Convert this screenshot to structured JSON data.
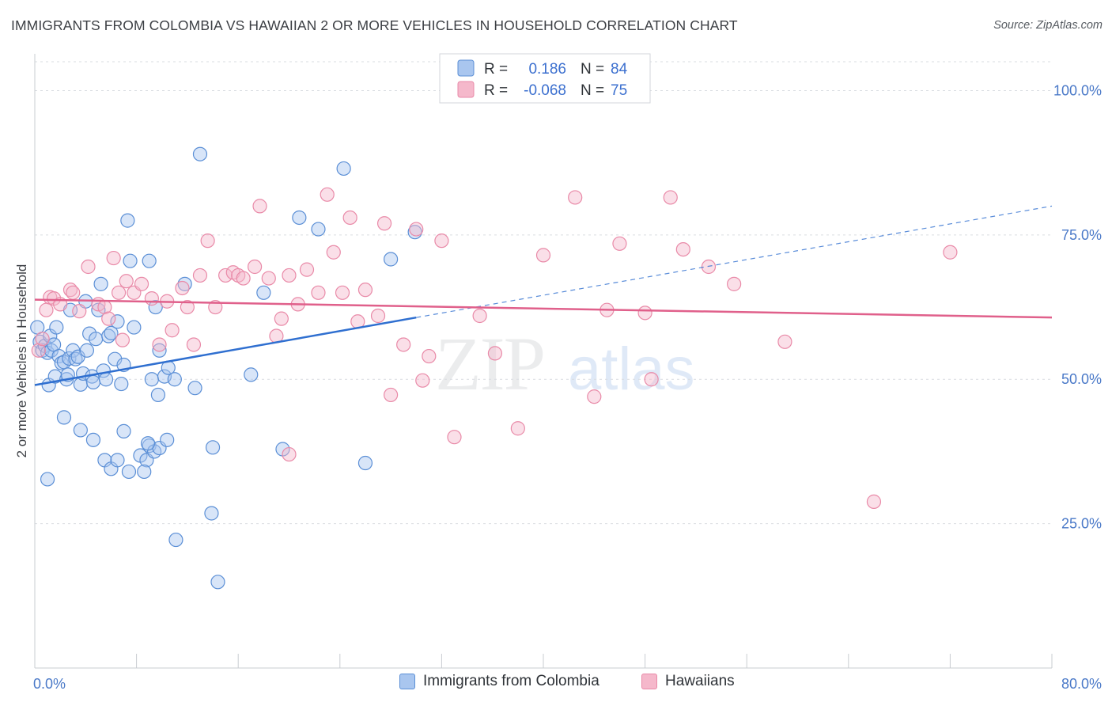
{
  "title": "IMMIGRANTS FROM COLOMBIA VS HAWAIIAN 2 OR MORE VEHICLES IN HOUSEHOLD CORRELATION CHART",
  "source": "Source: ZipAtlas.com",
  "watermark": {
    "zip": "ZIP",
    "atlas": "atlas"
  },
  "colors": {
    "colombia_fill": "#a9c6ef",
    "colombia_stroke": "#5b8fd6",
    "colombia_line": "#2f6fd0",
    "hawaiians_fill": "#f5b8cb",
    "hawaiians_stroke": "#e98aa8",
    "hawaiians_line": "#e0608b",
    "tick_label": "#4a79c8",
    "grid": "#d9dce1"
  },
  "legend": {
    "r_label": "R =",
    "n_label": "N =",
    "rows": [
      {
        "r": "0.186",
        "n": "84"
      },
      {
        "r": "-0.068",
        "n": "75"
      }
    ]
  },
  "chart_data": {
    "type": "scatter",
    "xlabel": "",
    "ylabel": "2 or more Vehicles in Household",
    "xlim": [
      0,
      80
    ],
    "ylim": [
      0,
      105
    ],
    "x_tick_labels": [
      "0.0%",
      "80.0%"
    ],
    "y_ticks": [
      25,
      50,
      75,
      100
    ],
    "y_tick_labels": [
      "25.0%",
      "50.0%",
      "75.0%",
      "100.0%"
    ],
    "grid": true,
    "legend_position": "top-center",
    "series": [
      {
        "name": "Immigrants from Colombia",
        "r": 0.186,
        "n": 84,
        "trend": {
          "x0": 0,
          "y0": 49.0,
          "x1": 30,
          "y1": 60.7,
          "dash_x1": 80,
          "dash_y1": 80.0
        },
        "points": [
          [
            0.2,
            59.0
          ],
          [
            0.4,
            56.5
          ],
          [
            0.6,
            55.0
          ],
          [
            0.8,
            55.8
          ],
          [
            1.0,
            54.6
          ],
          [
            1.2,
            57.5
          ],
          [
            1.1,
            49.0
          ],
          [
            1.3,
            55.0
          ],
          [
            1.5,
            56.0
          ],
          [
            1.7,
            59.0
          ],
          [
            1.6,
            50.5
          ],
          [
            1.9,
            54.0
          ],
          [
            2.1,
            52.8
          ],
          [
            2.3,
            53.0
          ],
          [
            2.5,
            50.0
          ],
          [
            2.6,
            50.8
          ],
          [
            2.7,
            53.6
          ],
          [
            2.8,
            62.0
          ],
          [
            3.0,
            55.0
          ],
          [
            3.2,
            53.5
          ],
          [
            3.4,
            53.9
          ],
          [
            3.6,
            49.1
          ],
          [
            3.8,
            51.0
          ],
          [
            4.0,
            63.5
          ],
          [
            4.1,
            55.0
          ],
          [
            4.3,
            57.9
          ],
          [
            4.5,
            50.5
          ],
          [
            4.6,
            49.5
          ],
          [
            4.8,
            57.0
          ],
          [
            5.0,
            62.0
          ],
          [
            5.2,
            66.5
          ],
          [
            5.4,
            51.5
          ],
          [
            5.6,
            50.0
          ],
          [
            5.8,
            57.5
          ],
          [
            6.0,
            58.0
          ],
          [
            6.3,
            53.5
          ],
          [
            6.5,
            60.0
          ],
          [
            6.8,
            49.2
          ],
          [
            7.0,
            52.5
          ],
          [
            7.3,
            77.5
          ],
          [
            7.5,
            70.5
          ],
          [
            7.8,
            59.0
          ],
          [
            9.0,
            70.5
          ],
          [
            9.5,
            62.5
          ],
          [
            9.2,
            50.0
          ],
          [
            9.8,
            55.0
          ],
          [
            10.2,
            50.5
          ],
          [
            10.5,
            52.0
          ],
          [
            11.0,
            50.0
          ],
          [
            11.8,
            66.5
          ],
          [
            12.6,
            48.5
          ],
          [
            13.0,
            89.0
          ],
          [
            18.0,
            65.0
          ],
          [
            17.0,
            50.8
          ],
          [
            20.8,
            78.0
          ],
          [
            22.3,
            76.0
          ],
          [
            24.3,
            86.5
          ],
          [
            28.0,
            70.8
          ],
          [
            29.9,
            75.5
          ],
          [
            1.0,
            32.7
          ],
          [
            2.3,
            43.4
          ],
          [
            3.6,
            41.2
          ],
          [
            4.6,
            39.5
          ],
          [
            5.5,
            36.0
          ],
          [
            6.0,
            34.5
          ],
          [
            6.5,
            36.0
          ],
          [
            7.0,
            41.0
          ],
          [
            7.4,
            34.0
          ],
          [
            8.3,
            36.8
          ],
          [
            8.8,
            36.0
          ],
          [
            8.6,
            34.0
          ],
          [
            9.0,
            38.5
          ],
          [
            9.4,
            37.5
          ],
          [
            9.8,
            38.1
          ],
          [
            10.4,
            39.5
          ],
          [
            11.1,
            22.2
          ],
          [
            14.0,
            38.2
          ],
          [
            13.9,
            26.8
          ],
          [
            14.4,
            14.9
          ],
          [
            19.5,
            37.9
          ],
          [
            26.0,
            35.5
          ],
          [
            8.9,
            38.9
          ],
          [
            9.7,
            47.3
          ]
        ]
      },
      {
        "name": "Hawaiians",
        "r": -0.068,
        "n": 75,
        "trend": {
          "x0": 0,
          "y0": 63.8,
          "x1": 80,
          "y1": 60.7
        },
        "points": [
          [
            0.3,
            55.0
          ],
          [
            0.6,
            57.0
          ],
          [
            0.9,
            62.0
          ],
          [
            1.2,
            64.2
          ],
          [
            1.5,
            64.0
          ],
          [
            2.0,
            63.0
          ],
          [
            2.8,
            65.5
          ],
          [
            3.0,
            65.0
          ],
          [
            3.5,
            61.8
          ],
          [
            4.2,
            69.5
          ],
          [
            5.0,
            63.0
          ],
          [
            5.5,
            62.5
          ],
          [
            5.8,
            60.5
          ],
          [
            6.2,
            71.0
          ],
          [
            6.6,
            65.0
          ],
          [
            6.9,
            56.8
          ],
          [
            7.2,
            67.0
          ],
          [
            7.8,
            65.0
          ],
          [
            8.4,
            66.5
          ],
          [
            9.2,
            64.0
          ],
          [
            9.8,
            56.0
          ],
          [
            10.4,
            63.5
          ],
          [
            10.8,
            58.5
          ],
          [
            11.6,
            65.8
          ],
          [
            12.0,
            62.5
          ],
          [
            12.5,
            56.0
          ],
          [
            13.0,
            68.0
          ],
          [
            13.6,
            74.0
          ],
          [
            14.2,
            62.5
          ],
          [
            15.0,
            68.0
          ],
          [
            15.6,
            68.5
          ],
          [
            16.0,
            68.0
          ],
          [
            16.4,
            67.5
          ],
          [
            17.3,
            69.5
          ],
          [
            17.7,
            80.0
          ],
          [
            18.4,
            67.5
          ],
          [
            19.0,
            57.5
          ],
          [
            19.4,
            60.5
          ],
          [
            20.0,
            68.0
          ],
          [
            20.7,
            63.0
          ],
          [
            21.4,
            69.0
          ],
          [
            22.3,
            65.0
          ],
          [
            23.0,
            82.0
          ],
          [
            23.5,
            72.0
          ],
          [
            24.2,
            65.0
          ],
          [
            24.8,
            78.0
          ],
          [
            25.4,
            60.0
          ],
          [
            26.0,
            65.5
          ],
          [
            27.0,
            61.0
          ],
          [
            27.5,
            77.0
          ],
          [
            29.0,
            56.0
          ],
          [
            30.0,
            76.0
          ],
          [
            30.5,
            49.8
          ],
          [
            31.0,
            54.0
          ],
          [
            32.0,
            74.0
          ],
          [
            33.0,
            40.0
          ],
          [
            35.0,
            61.0
          ],
          [
            36.2,
            54.5
          ],
          [
            38.0,
            41.5
          ],
          [
            40.0,
            71.5
          ],
          [
            42.5,
            81.5
          ],
          [
            44.0,
            47.0
          ],
          [
            45.0,
            62.0
          ],
          [
            46.0,
            73.5
          ],
          [
            48.0,
            61.5
          ],
          [
            48.5,
            50.0
          ],
          [
            50.0,
            81.5
          ],
          [
            51.0,
            72.5
          ],
          [
            53.0,
            69.5
          ],
          [
            55.0,
            66.5
          ],
          [
            59.0,
            56.5
          ],
          [
            66.0,
            28.8
          ],
          [
            72.0,
            72.0
          ],
          [
            20.0,
            37.0
          ],
          [
            28.0,
            47.3
          ]
        ]
      }
    ]
  }
}
